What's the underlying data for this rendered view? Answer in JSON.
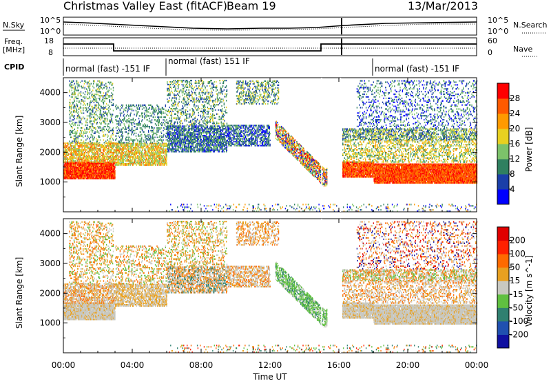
{
  "header": {
    "station": "Christmas Valley East (fitACF)",
    "beam": "Beam 19",
    "date": "13/Mar/2013"
  },
  "noise_panel": {
    "left_label": "N.Sky",
    "left_ticks": [
      "10^5",
      "10^0"
    ],
    "right_ticks": [
      "10^5",
      "10^0"
    ],
    "right_label": "N.Search"
  },
  "freq_panel": {
    "left_label_1": "Freq.",
    "left_label_2": "[MHz]",
    "left_ticks": [
      "18",
      "8"
    ],
    "right_ticks": [
      "60",
      "0"
    ],
    "right_label": "Nave"
  },
  "cpid": {
    "label": "CPID",
    "modes": [
      {
        "text": "normal (fast) -151 IF",
        "start_hour": 0
      },
      {
        "text": "normal (fast) 151 IF",
        "start_hour": 6
      },
      {
        "text": "normal (fast) -151 IF",
        "start_hour": 18
      }
    ]
  },
  "chart_data": [
    {
      "type": "heatmap",
      "title": "",
      "parameter": "Power",
      "colorbar_label": "Power [dB]",
      "colorbar_ticks": [
        "4",
        "8",
        "12",
        "16",
        "20",
        "24",
        "28"
      ],
      "colors": [
        "#0000ff",
        "#1a3fa8",
        "#2f8060",
        "#7cc26a",
        "#e8d020",
        "#ff9a00",
        "#ff5a00",
        "#ff0000"
      ],
      "ylabel": "Slant Range [km]",
      "yticks": [
        "1000",
        "2000",
        "3000",
        "4000"
      ],
      "ylim": [
        0,
        4500
      ],
      "xlim": [
        0,
        24
      ]
    },
    {
      "type": "heatmap",
      "title": "",
      "parameter": "Velocity",
      "colorbar_label": "Velocity [m s^-1]",
      "colorbar_ticks": [
        "200",
        "100",
        "50",
        "15",
        "-15",
        "-50",
        "-100",
        "-200"
      ],
      "colors": [
        "#1010a0",
        "#2050b0",
        "#308070",
        "#60c040",
        "#c8c8c0",
        "#e8a020",
        "#ff6a00",
        "#ff2000",
        "#e00000"
      ],
      "ylabel": "Slant Range [km]",
      "yticks": [
        "1000",
        "2000",
        "3000",
        "4000"
      ],
      "ylim": [
        0,
        4500
      ],
      "xlim": [
        0,
        24
      ]
    }
  ],
  "x_axis": {
    "ticks": [
      "00:00",
      "04:00",
      "08:00",
      "12:00",
      "16:00",
      "20:00",
      "00:00"
    ],
    "label": "Time UT"
  }
}
